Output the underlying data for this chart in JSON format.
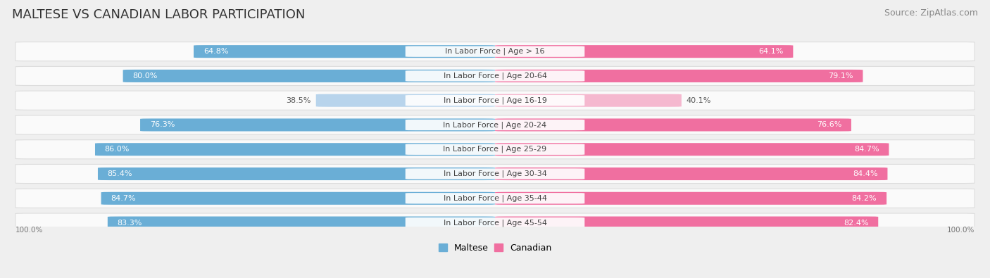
{
  "title": "MALTESE VS CANADIAN LABOR PARTICIPATION",
  "source": "Source: ZipAtlas.com",
  "categories": [
    "In Labor Force | Age > 16",
    "In Labor Force | Age 20-64",
    "In Labor Force | Age 16-19",
    "In Labor Force | Age 20-24",
    "In Labor Force | Age 25-29",
    "In Labor Force | Age 30-34",
    "In Labor Force | Age 35-44",
    "In Labor Force | Age 45-54"
  ],
  "maltese_values": [
    64.8,
    80.0,
    38.5,
    76.3,
    86.0,
    85.4,
    84.7,
    83.3
  ],
  "canadian_values": [
    64.1,
    79.1,
    40.1,
    76.6,
    84.7,
    84.4,
    84.2,
    82.4
  ],
  "maltese_color": "#6AAED6",
  "maltese_color_light": "#B8D4EC",
  "canadian_color": "#F06FA0",
  "canadian_color_light": "#F5B8CF",
  "bg_color": "#EFEFEF",
  "row_bg_color": "#FAFAFA",
  "row_border_color": "#DDDDDD",
  "max_val": 100.0,
  "legend_maltese": "Maltese",
  "legend_canadian": "Canadian",
  "title_fontsize": 13,
  "source_fontsize": 9,
  "label_fontsize": 8.0,
  "value_fontsize": 8.0,
  "legend_fontsize": 9,
  "center_label_bg": "#FFFFFF"
}
